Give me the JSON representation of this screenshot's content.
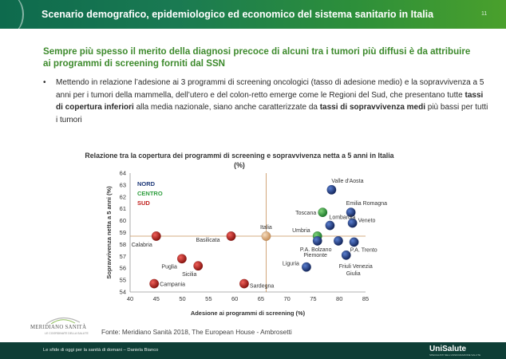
{
  "slide": {
    "title": "Scenario demografico, epidemiologico ed economico del sistema sanitario in Italia",
    "page_number": "11",
    "headline": "Sempre più spesso il merito della diagnosi precoce di alcuni tra i tumori più diffusi è da attribuire ai programmi di screening forniti dal SSN",
    "bullet_symbol": "•",
    "bullet_part1": "Mettendo in relazione l’adesione ai 3 programmi di screening oncologici (tasso di adesione medio) e la sopravvivenza a 5 anni per i tumori della mammella, dell’utero e del colon-retto emerge come le Regioni del Sud, che presentano tutte ",
    "bullet_bold1": "tassi di copertura inferiori",
    "bullet_part2": " alla media nazionale, siano anche caratterizzate da ",
    "bullet_bold2": "tassi di sopravvivenza medi",
    "bullet_part3": " più bassi per tutti i tumori"
  },
  "chart_data": {
    "type": "scatter",
    "title": "Relazione tra la copertura dei programmi di screening e sopravvivenza netta a 5 anni in Italia (%)",
    "xlabel": "Adesione ai programmi di screening (%)",
    "ylabel": "Sopravvivenza netta a 5 anni (%)",
    "xlim": [
      40,
      85
    ],
    "ylim": [
      54,
      64
    ],
    "xticks": [
      40,
      45,
      50,
      55,
      60,
      65,
      70,
      75,
      80,
      85
    ],
    "yticks": [
      54,
      55,
      56,
      57,
      58,
      59,
      60,
      61,
      62,
      63,
      64
    ],
    "reference_lines": {
      "x": 66,
      "y": 58.7
    },
    "legend": [
      {
        "label": "NORD",
        "color": "#1f3a7a"
      },
      {
        "label": "CENTRO",
        "color": "#2e9e3e"
      },
      {
        "label": "SUD",
        "color": "#c0201c"
      }
    ],
    "points": [
      {
        "label": "Valle d'Aosta",
        "x": 78.5,
        "y": 62.6,
        "group": "NORD"
      },
      {
        "label": "Emilia Romagna",
        "x": 82.2,
        "y": 60.7,
        "group": "NORD"
      },
      {
        "label": "Toscana",
        "x": 76.8,
        "y": 60.7,
        "group": "CENTRO"
      },
      {
        "label": "Veneto",
        "x": 82.5,
        "y": 59.8,
        "group": "NORD"
      },
      {
        "label": "Lombardia",
        "x": 78.2,
        "y": 59.6,
        "group": "NORD"
      },
      {
        "label": "Umbria",
        "x": 75.8,
        "y": 58.7,
        "group": "CENTRO"
      },
      {
        "label": "Italia",
        "x": 66.0,
        "y": 58.7,
        "group": "ITALIA"
      },
      {
        "label": "Basilicata",
        "x": 59.3,
        "y": 58.7,
        "group": "SUD"
      },
      {
        "label": "Calabria",
        "x": 45.0,
        "y": 58.7,
        "group": "SUD"
      },
      {
        "label": "P.A. Bolzano",
        "x": 75.8,
        "y": 58.3,
        "group": "NORD"
      },
      {
        "label": "Piemonte",
        "x": 79.8,
        "y": 58.3,
        "group": "NORD"
      },
      {
        "label": "P.A. Trento",
        "x": 82.8,
        "y": 58.2,
        "group": "NORD"
      },
      {
        "label": "Friuli Venezia Giulia",
        "x": 81.3,
        "y": 57.1,
        "group": "NORD"
      },
      {
        "label": "Liguria",
        "x": 73.7,
        "y": 56.1,
        "group": "NORD"
      },
      {
        "label": "Puglia",
        "x": 49.9,
        "y": 56.8,
        "group": "SUD"
      },
      {
        "label": "Sicilia",
        "x": 53.0,
        "y": 56.2,
        "group": "SUD"
      },
      {
        "label": "Campania",
        "x": 44.6,
        "y": 54.7,
        "group": "SUD"
      },
      {
        "label": "Sardegna",
        "x": 61.8,
        "y": 54.7,
        "group": "SUD"
      }
    ]
  },
  "source": "Fonte: Meridiano Sanità 2018, The European House - Ambrosetti",
  "logos": {
    "left_name": "MERIDIANO SANITÀ",
    "left_sub": "LE COORDINATE DELLA SALUTE",
    "right_name": "UniSalute",
    "right_sub": "SPECIALISTI NELL'ASSICURAZIONE SALUTE"
  },
  "footer": {
    "text": "Le sfide di oggi per la sanità di domani – Daniela Bianco"
  },
  "colors": {
    "header_green": "#1a7a52",
    "headline_green": "#3d8a2c",
    "footer_dark": "#0e3e36",
    "nord": "#1f3a7a",
    "centro": "#2e9e3e",
    "sud": "#c0201c",
    "italia": "#e8b98a",
    "reference_line": "#c8905a"
  }
}
